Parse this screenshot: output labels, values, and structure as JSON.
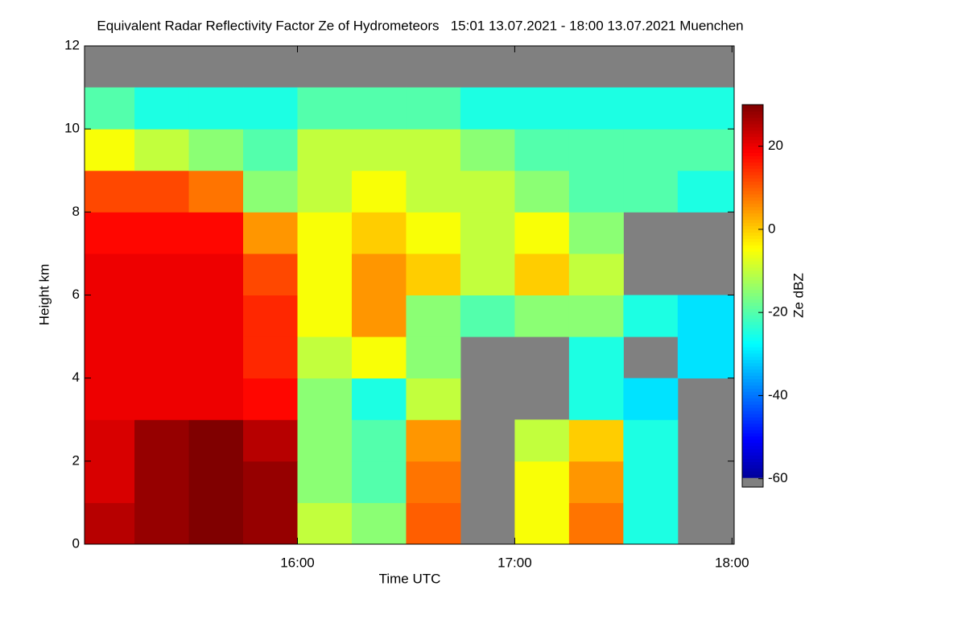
{
  "chart_data": {
    "type": "heatmap",
    "title": "Equivalent Radar Reflectivity Factor Ze of Hydrometeors   15:01 13.07.2021 - 18:00 13.07.2021 Muenchen",
    "x_label": "Time UTC",
    "y_label": "Height km",
    "colorbar_label": "Ze dBZ",
    "xlim": [
      15.02,
      18.01
    ],
    "xticks": [
      {
        "value": 16,
        "label": "16:00"
      },
      {
        "value": 17,
        "label": "17:00"
      },
      {
        "value": 18,
        "label": "18:00"
      }
    ],
    "ylim": [
      0,
      12
    ],
    "yticks": [
      0,
      2,
      4,
      6,
      8,
      10,
      12
    ],
    "clim": [
      -62,
      30
    ],
    "cticks": [
      -60,
      -40,
      -20,
      0,
      20
    ],
    "colormap": "jet",
    "background": "#808080",
    "x_bins": [
      15.02,
      15.25,
      15.5,
      15.75,
      16,
      16.25,
      16.5,
      16.75,
      17,
      17.25,
      17.5,
      17.75,
      18.01
    ],
    "y_bins": [
      0,
      1,
      2,
      3,
      4,
      5,
      6,
      7,
      8,
      9,
      10,
      11,
      12
    ],
    "values": [
      [
        25,
        28,
        30,
        28,
        -10,
        -15,
        10,
        null,
        -5,
        8,
        -25,
        null
      ],
      [
        22,
        28,
        30,
        28,
        -15,
        -20,
        8,
        null,
        -5,
        5,
        -25,
        null
      ],
      [
        22,
        28,
        30,
        25,
        -15,
        -20,
        5,
        null,
        -10,
        0,
        -25,
        null
      ],
      [
        20,
        20,
        20,
        18,
        -15,
        -25,
        -10,
        null,
        null,
        -25,
        -30,
        null
      ],
      [
        20,
        20,
        20,
        15,
        -10,
        -5,
        -15,
        null,
        null,
        -25,
        null,
        -30
      ],
      [
        20,
        20,
        20,
        15,
        -5,
        5,
        -15,
        -20,
        -15,
        -15,
        -25,
        -30
      ],
      [
        20,
        20,
        20,
        12,
        -5,
        5,
        0,
        -10,
        0,
        -10,
        null,
        null
      ],
      [
        18,
        18,
        18,
        5,
        -5,
        0,
        -5,
        -10,
        -5,
        -15,
        null,
        null
      ],
      [
        12,
        12,
        8,
        -15,
        -10,
        -5,
        -10,
        -10,
        -15,
        -20,
        -20,
        -25
      ],
      [
        -5,
        -10,
        -15,
        -20,
        -10,
        -10,
        -10,
        -15,
        -20,
        -20,
        -20,
        -20
      ],
      [
        -20,
        -25,
        -25,
        -25,
        -20,
        -20,
        -20,
        -25,
        -25,
        -25,
        -25,
        -25
      ],
      [
        null,
        null,
        null,
        null,
        null,
        null,
        null,
        null,
        null,
        null,
        null,
        null
      ]
    ]
  }
}
